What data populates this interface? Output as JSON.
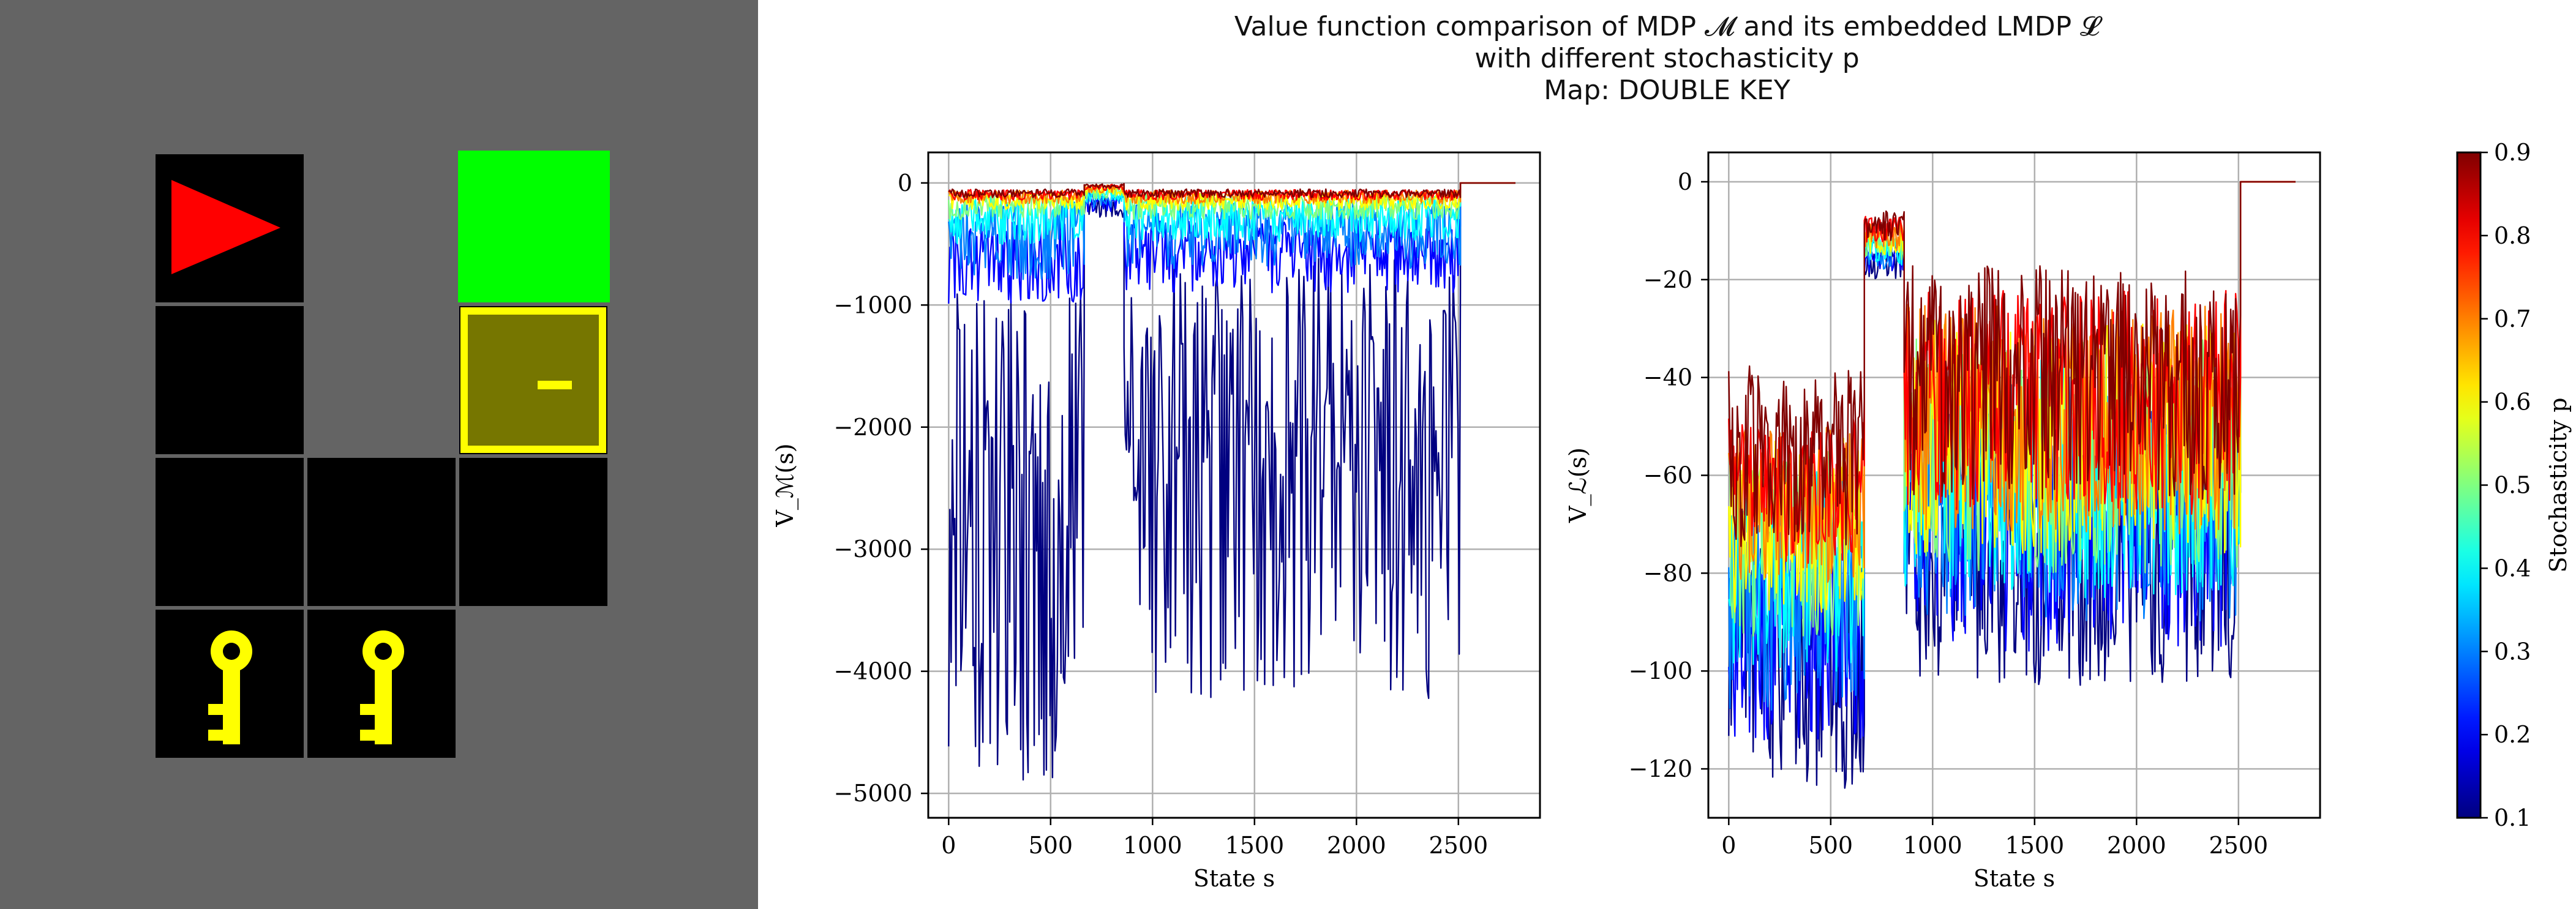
{
  "title": {
    "line1": "Value function comparison of MDP 𝓜 and its embedded LMDP 𝓛",
    "line2": "with different stochasticity p",
    "line3": "Map: DOUBLE KEY"
  },
  "map": {
    "name": "DOUBLE KEY",
    "background_color": "#646464",
    "tiles": [
      {
        "row": 0,
        "col": 0,
        "kind": "agent",
        "icon": "agent-triangle-icon",
        "color": "#ff0000"
      },
      {
        "row": 0,
        "col": 2,
        "kind": "goal",
        "color": "#00ff00"
      },
      {
        "row": 1,
        "col": 0,
        "kind": "floor"
      },
      {
        "row": 1,
        "col": 2,
        "kind": "door",
        "icon": "locked-door-icon",
        "color": "#ffff00"
      },
      {
        "row": 2,
        "col": 0,
        "kind": "floor"
      },
      {
        "row": 2,
        "col": 1,
        "kind": "floor"
      },
      {
        "row": 2,
        "col": 2,
        "kind": "floor"
      },
      {
        "row": 3,
        "col": 0,
        "kind": "key",
        "icon": "key-icon",
        "color": "#ffff00"
      },
      {
        "row": 3,
        "col": 1,
        "kind": "key",
        "icon": "key-icon",
        "color": "#ffff00"
      }
    ]
  },
  "chart_data": [
    {
      "type": "line",
      "panel": "left",
      "xlabel": "State s",
      "ylabel": "V_ℳ(s)",
      "xlim": [
        -100,
        2900
      ],
      "ylim": [
        -5200,
        250
      ],
      "xticks": [
        0,
        500,
        1000,
        1500,
        2000,
        2500
      ],
      "yticks": [
        0,
        -1000,
        -2000,
        -3000,
        -4000,
        -5000
      ],
      "ytick_labels": [
        "0",
        "−1000",
        "−2000",
        "−3000",
        "−4000",
        "−5000"
      ],
      "grid": true,
      "n_states": 2780,
      "series_by_p": [
        0.1,
        0.2,
        0.3,
        0.4,
        0.5,
        0.6,
        0.7,
        0.8,
        0.9
      ],
      "approx_segments": [
        {
          "x_range": [
            0,
            665
          ],
          "min_by_p": [
            -4950,
            -1000,
            -800,
            -500,
            -300,
            -220,
            -170,
            -140,
            -120
          ],
          "max_by_p": [
            -900,
            -300,
            -150,
            -100,
            -80,
            -70,
            -60,
            -55,
            -50
          ]
        },
        {
          "x_range": [
            665,
            860
          ],
          "min_by_p": [
            -280,
            -240,
            -200,
            -160,
            -130,
            -100,
            -80,
            -60,
            -40
          ],
          "max_by_p": [
            -100,
            -70,
            -50,
            -40,
            -30,
            -20,
            -15,
            -10,
            -5
          ]
        },
        {
          "x_range": [
            860,
            2510
          ],
          "min_by_p": [
            -4250,
            -900,
            -700,
            -480,
            -300,
            -220,
            -170,
            -140,
            -120
          ],
          "max_by_p": [
            -600,
            -300,
            -150,
            -100,
            -80,
            -70,
            -60,
            -55,
            -50
          ]
        },
        {
          "x_range": [
            2510,
            2780
          ],
          "min_by_p": [
            0,
            0,
            0,
            0,
            0,
            0,
            0,
            0,
            0
          ],
          "max_by_p": [
            0,
            0,
            0,
            0,
            0,
            0,
            0,
            0,
            0
          ]
        }
      ]
    },
    {
      "type": "line",
      "panel": "right",
      "xlabel": "State s",
      "ylabel": "V_ℒ(s)",
      "xlim": [
        -100,
        2900
      ],
      "ylim": [
        -130,
        6
      ],
      "xticks": [
        0,
        500,
        1000,
        1500,
        2000,
        2500
      ],
      "yticks": [
        0,
        -20,
        -40,
        -60,
        -80,
        -100,
        -120
      ],
      "ytick_labels": [
        "0",
        "−20",
        "−40",
        "−60",
        "−80",
        "−100",
        "−120"
      ],
      "grid": true,
      "n_states": 2780,
      "series_by_p": [
        0.1,
        0.2,
        0.3,
        0.4,
        0.5,
        0.6,
        0.7,
        0.8,
        0.9
      ],
      "approx_segments": [
        {
          "x_range": [
            0,
            665
          ],
          "min_by_p": [
            -124,
            -115,
            -108,
            -100,
            -93,
            -88,
            -82,
            -78,
            -75
          ],
          "max_by_p": [
            -72,
            -66,
            -62,
            -58,
            -55,
            -52,
            -50,
            -48,
            -37
          ]
        },
        {
          "x_range": [
            665,
            860
          ],
          "min_by_p": [
            -20,
            -19,
            -18,
            -17,
            -16,
            -15,
            -14,
            -13,
            -12
          ],
          "max_by_p": [
            -14,
            -13,
            -12,
            -11,
            -10,
            -9,
            -8,
            -7,
            -6
          ]
        },
        {
          "x_range": [
            860,
            2510
          ],
          "min_by_p": [
            -103,
            -96,
            -90,
            -85,
            -80,
            -76,
            -72,
            -68,
            -65
          ],
          "max_by_p": [
            -50,
            -45,
            -40,
            -36,
            -32,
            -28,
            -25,
            -22,
            -17
          ]
        },
        {
          "x_range": [
            2510,
            2780
          ],
          "min_by_p": [
            0,
            0,
            0,
            0,
            0,
            0,
            0,
            0,
            0
          ],
          "max_by_p": [
            0,
            0,
            0,
            0,
            0,
            0,
            0,
            0,
            0
          ]
        }
      ]
    },
    {
      "type": "colorbar",
      "label": "Stochasticity p",
      "colormap": "jet",
      "range": [
        0.1,
        0.9
      ],
      "ticks": [
        0.1,
        0.2,
        0.3,
        0.4,
        0.5,
        0.6,
        0.7,
        0.8,
        0.9
      ],
      "tick_labels": [
        "0.1",
        "0.2",
        "0.3",
        "0.4",
        "0.5",
        "0.6",
        "0.7",
        "0.8",
        "0.9"
      ]
    }
  ]
}
